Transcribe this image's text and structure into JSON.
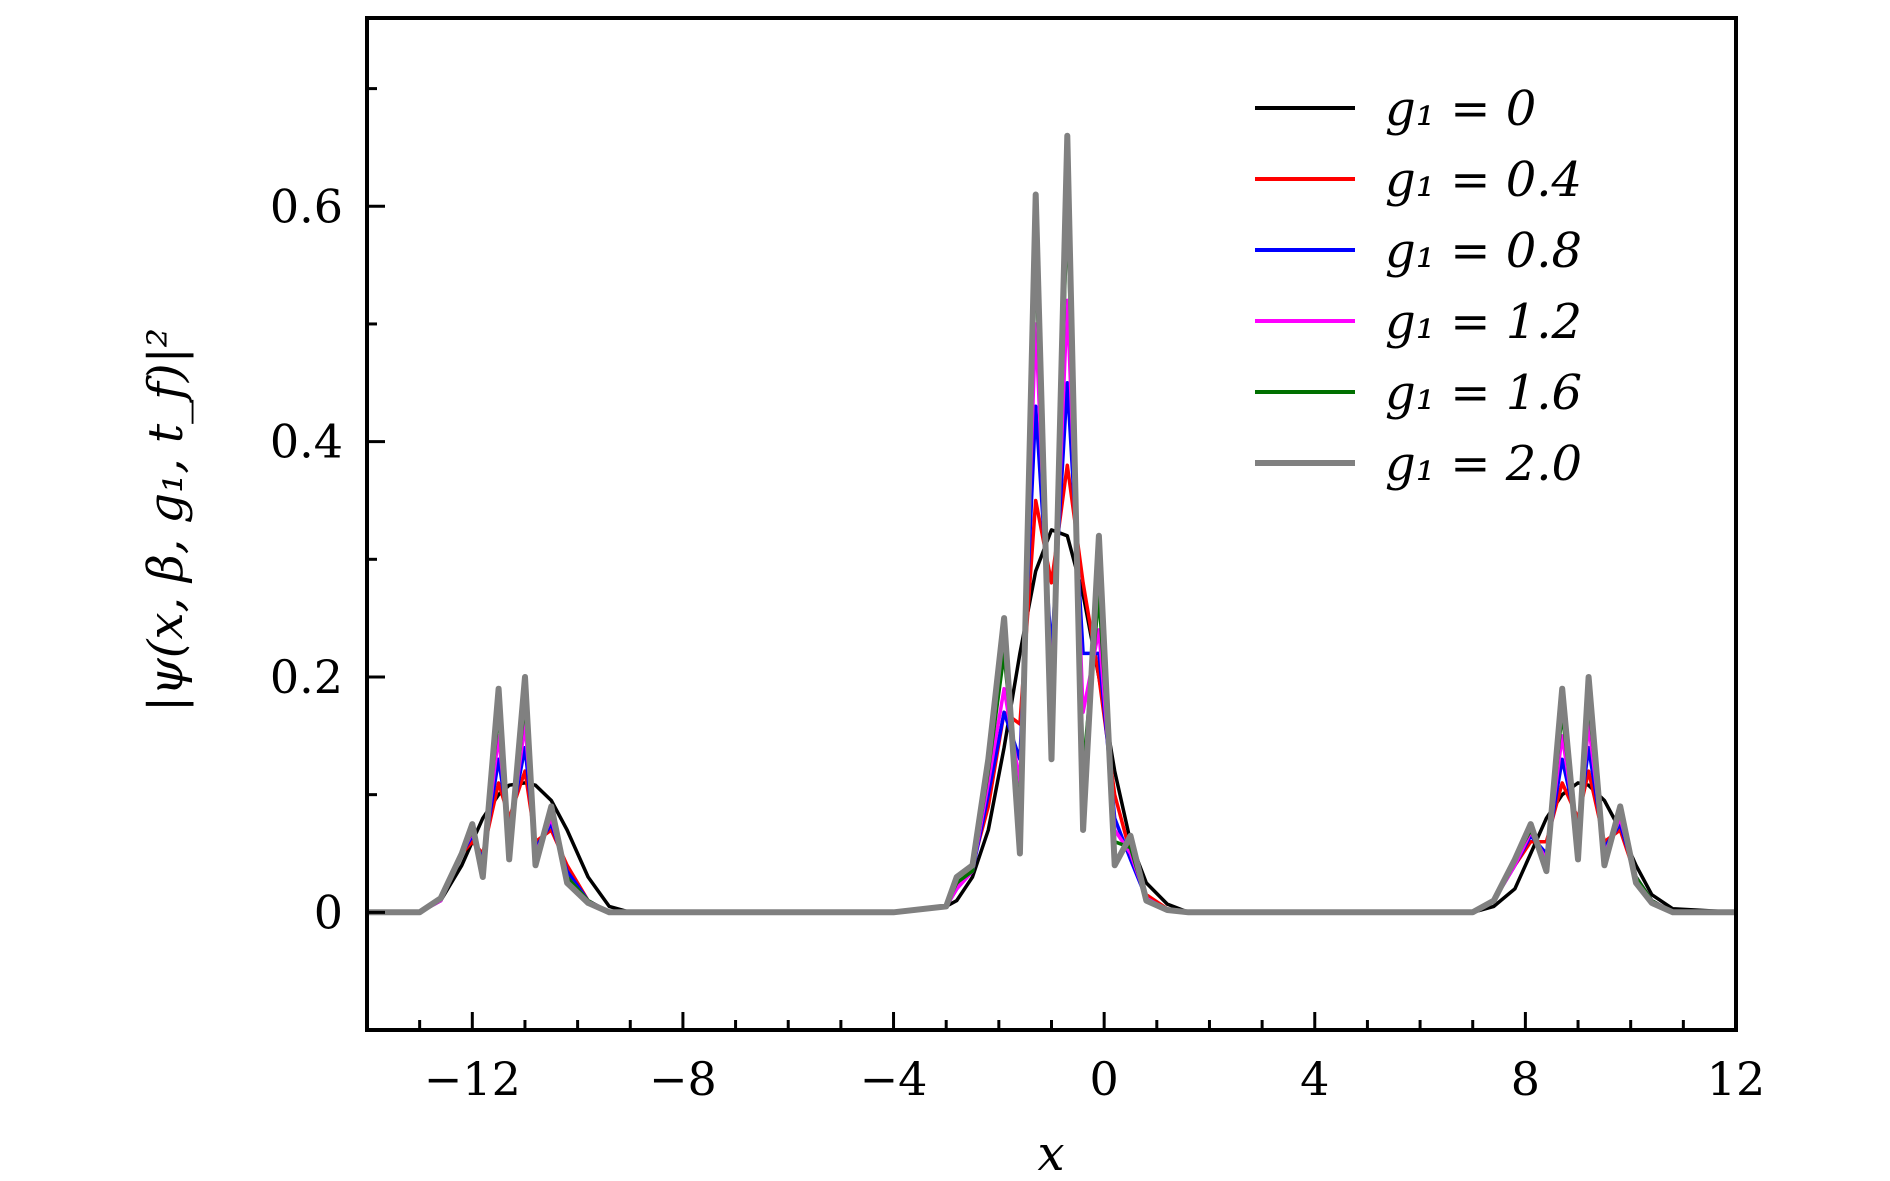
{
  "chart_data": {
    "type": "line",
    "title": "",
    "xlabel": "x",
    "ylabel": "|ψ(x, β, g₁, t_f)|²",
    "xlim": [
      -14,
      12
    ],
    "ylim": [
      -0.1,
      0.76
    ],
    "grid": false,
    "legend_position": "top-right",
    "x_ticks": [
      -12,
      -8,
      -4,
      0,
      4,
      8,
      12
    ],
    "x_tick_labels": [
      "−12",
      "−8",
      "−4",
      "0",
      "4",
      "8",
      "12"
    ],
    "y_ticks": [
      0,
      0.2,
      0.4,
      0.6
    ],
    "y_tick_labels": [
      "0",
      "0.2",
      "0.4",
      "0.6"
    ],
    "x_sample": [
      -14,
      -13,
      -12.6,
      -12.2,
      -12.0,
      -11.8,
      -11.5,
      -11.3,
      -11.0,
      -10.8,
      -10.5,
      -10.2,
      -9.8,
      -9.4,
      -9,
      -8,
      -4,
      -3,
      -2.8,
      -2.5,
      -2.2,
      -1.9,
      -1.6,
      -1.3,
      -1.0,
      -0.7,
      -0.4,
      -0.1,
      0.2,
      0.5,
      0.8,
      1.2,
      1.6,
      2,
      4,
      7,
      7.4,
      7.8,
      8.1,
      8.4,
      8.7,
      9.0,
      9.2,
      9.5,
      9.8,
      10.1,
      10.4,
      10.8,
      12
    ],
    "series": [
      {
        "name": "g₁ = 0",
        "color": "#000000",
        "values": [
          0,
          0,
          0.01,
          0.04,
          0.06,
          0.08,
          0.1,
          0.108,
          0.11,
          0.108,
          0.095,
          0.07,
          0.03,
          0.005,
          0,
          0,
          0,
          0.005,
          0.01,
          0.03,
          0.07,
          0.14,
          0.22,
          0.29,
          0.325,
          0.32,
          0.27,
          0.2,
          0.12,
          0.06,
          0.025,
          0.007,
          0,
          0,
          0,
          0,
          0.005,
          0.02,
          0.05,
          0.08,
          0.1,
          0.11,
          0.108,
          0.095,
          0.07,
          0.04,
          0.015,
          0.003,
          0
        ]
      },
      {
        "name": "g₁ = 0.4",
        "color": "#ff0000",
        "values": [
          0,
          0,
          0.01,
          0.05,
          0.06,
          0.05,
          0.11,
          0.08,
          0.12,
          0.06,
          0.07,
          0.04,
          0.01,
          0,
          0,
          0,
          0,
          0.005,
          0.02,
          0.04,
          0.09,
          0.17,
          0.16,
          0.35,
          0.28,
          0.38,
          0.28,
          0.2,
          0.1,
          0.05,
          0.015,
          0.003,
          0,
          0,
          0,
          0,
          0.01,
          0.04,
          0.06,
          0.06,
          0.11,
          0.08,
          0.12,
          0.06,
          0.07,
          0.03,
          0.01,
          0,
          0
        ]
      },
      {
        "name": "g₁ = 0.8",
        "color": "#0000ff",
        "values": [
          0,
          0,
          0.01,
          0.05,
          0.065,
          0.045,
          0.13,
          0.07,
          0.14,
          0.055,
          0.075,
          0.035,
          0.01,
          0,
          0,
          0,
          0,
          0.005,
          0.02,
          0.035,
          0.1,
          0.17,
          0.13,
          0.43,
          0.22,
          0.45,
          0.22,
          0.22,
          0.08,
          0.045,
          0.012,
          0.002,
          0,
          0,
          0,
          0,
          0.01,
          0.04,
          0.065,
          0.05,
          0.13,
          0.07,
          0.14,
          0.055,
          0.075,
          0.03,
          0.01,
          0,
          0
        ]
      },
      {
        "name": "g₁ = 1.2",
        "color": "#ff00ff",
        "values": [
          0,
          0,
          0.01,
          0.05,
          0.068,
          0.04,
          0.15,
          0.06,
          0.16,
          0.05,
          0.08,
          0.03,
          0.01,
          0,
          0,
          0,
          0,
          0.005,
          0.02,
          0.035,
          0.11,
          0.19,
          0.11,
          0.5,
          0.19,
          0.52,
          0.17,
          0.24,
          0.07,
          0.05,
          0.012,
          0.002,
          0,
          0,
          0,
          0,
          0.01,
          0.04,
          0.068,
          0.045,
          0.15,
          0.06,
          0.16,
          0.05,
          0.08,
          0.03,
          0.01,
          0,
          0
        ]
      },
      {
        "name": "g₁ = 1.6",
        "color": "#007000",
        "values": [
          0,
          0,
          0.012,
          0.05,
          0.07,
          0.035,
          0.17,
          0.05,
          0.18,
          0.045,
          0.085,
          0.03,
          0.01,
          0,
          0,
          0,
          0,
          0.005,
          0.025,
          0.035,
          0.12,
          0.22,
          0.08,
          0.56,
          0.16,
          0.6,
          0.12,
          0.27,
          0.06,
          0.055,
          0.01,
          0.002,
          0,
          0,
          0,
          0,
          0.01,
          0.045,
          0.07,
          0.04,
          0.17,
          0.05,
          0.18,
          0.045,
          0.085,
          0.03,
          0.01,
          0,
          0
        ]
      },
      {
        "name": "g₁ = 2.0",
        "color": "#808080",
        "values": [
          0,
          0,
          0.012,
          0.05,
          0.075,
          0.03,
          0.19,
          0.045,
          0.2,
          0.04,
          0.09,
          0.025,
          0.008,
          0,
          0,
          0,
          0,
          0.005,
          0.03,
          0.04,
          0.13,
          0.25,
          0.05,
          0.61,
          0.13,
          0.66,
          0.07,
          0.32,
          0.04,
          0.065,
          0.01,
          0.002,
          0,
          0,
          0,
          0,
          0.01,
          0.045,
          0.075,
          0.035,
          0.19,
          0.045,
          0.2,
          0.04,
          0.09,
          0.025,
          0.008,
          0,
          0
        ]
      }
    ]
  }
}
